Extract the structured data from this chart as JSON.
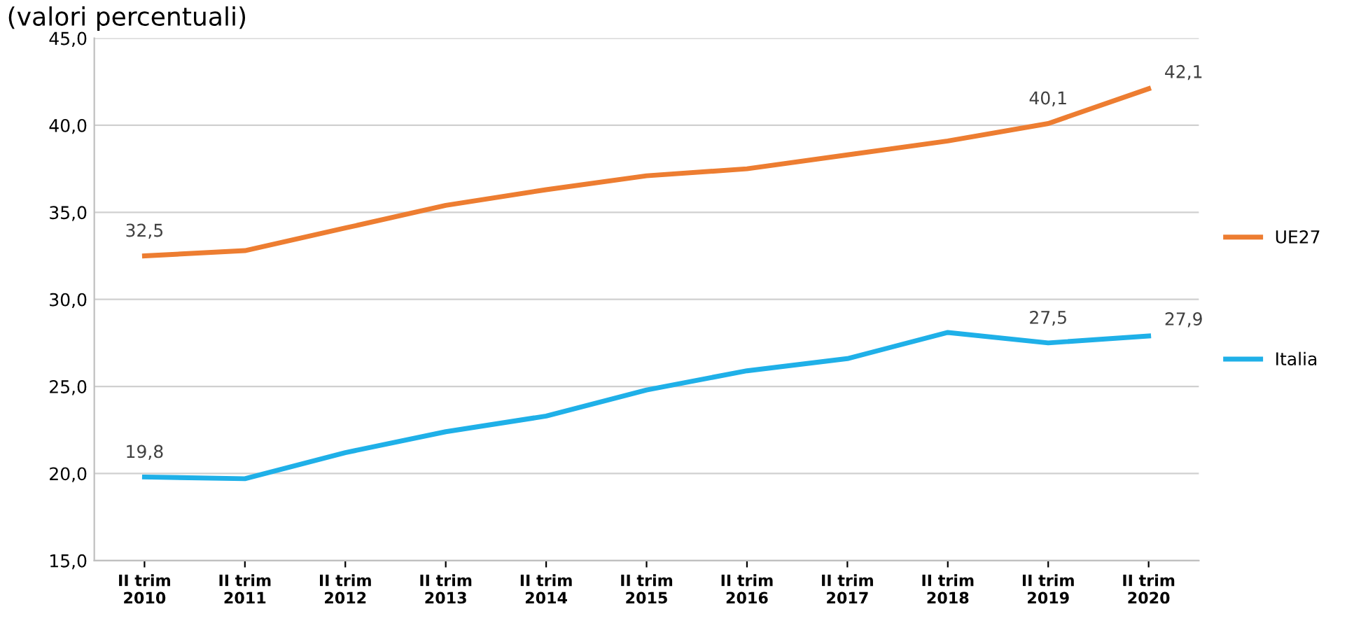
{
  "chart_data": {
    "type": "line",
    "title": "(valori percentuali)",
    "categories": [
      "II trim\n2010",
      "II trim\n2011",
      "II trim\n2012",
      "II trim\n2013",
      "II trim\n2014",
      "II trim\n2015",
      "II trim\n2016",
      "II trim\n2017",
      "II trim\n2018",
      "II trim\n2019",
      "II trim\n2020"
    ],
    "series": [
      {
        "name": "UE27",
        "color": "#ed7d31",
        "values": [
          32.5,
          32.8,
          34.1,
          35.4,
          36.3,
          37.1,
          37.5,
          38.3,
          39.1,
          40.1,
          42.1
        ],
        "value_labels": [
          "32,5",
          null,
          null,
          null,
          null,
          null,
          null,
          null,
          null,
          "40,1",
          "42,1"
        ]
      },
      {
        "name": "Italia",
        "color": "#1fb0e8",
        "values": [
          19.8,
          19.7,
          21.2,
          22.4,
          23.3,
          24.8,
          25.9,
          26.6,
          28.1,
          27.5,
          27.9
        ],
        "value_labels": [
          "19,8",
          null,
          null,
          null,
          null,
          null,
          null,
          null,
          null,
          "27,5",
          "27,9"
        ]
      }
    ],
    "ylim": [
      15,
      45
    ],
    "yticks": [
      {
        "value": 15,
        "label": "15,0"
      },
      {
        "value": 20,
        "label": "20,0"
      },
      {
        "value": 25,
        "label": "25,0"
      },
      {
        "value": 30,
        "label": "30,0"
      },
      {
        "value": 35,
        "label": "35,0"
      },
      {
        "value": 40,
        "label": "40,0"
      },
      {
        "value": 45,
        "label": "45,0"
      }
    ],
    "grid": "y",
    "legend": "right",
    "marker": "none",
    "line_style": "solid"
  }
}
